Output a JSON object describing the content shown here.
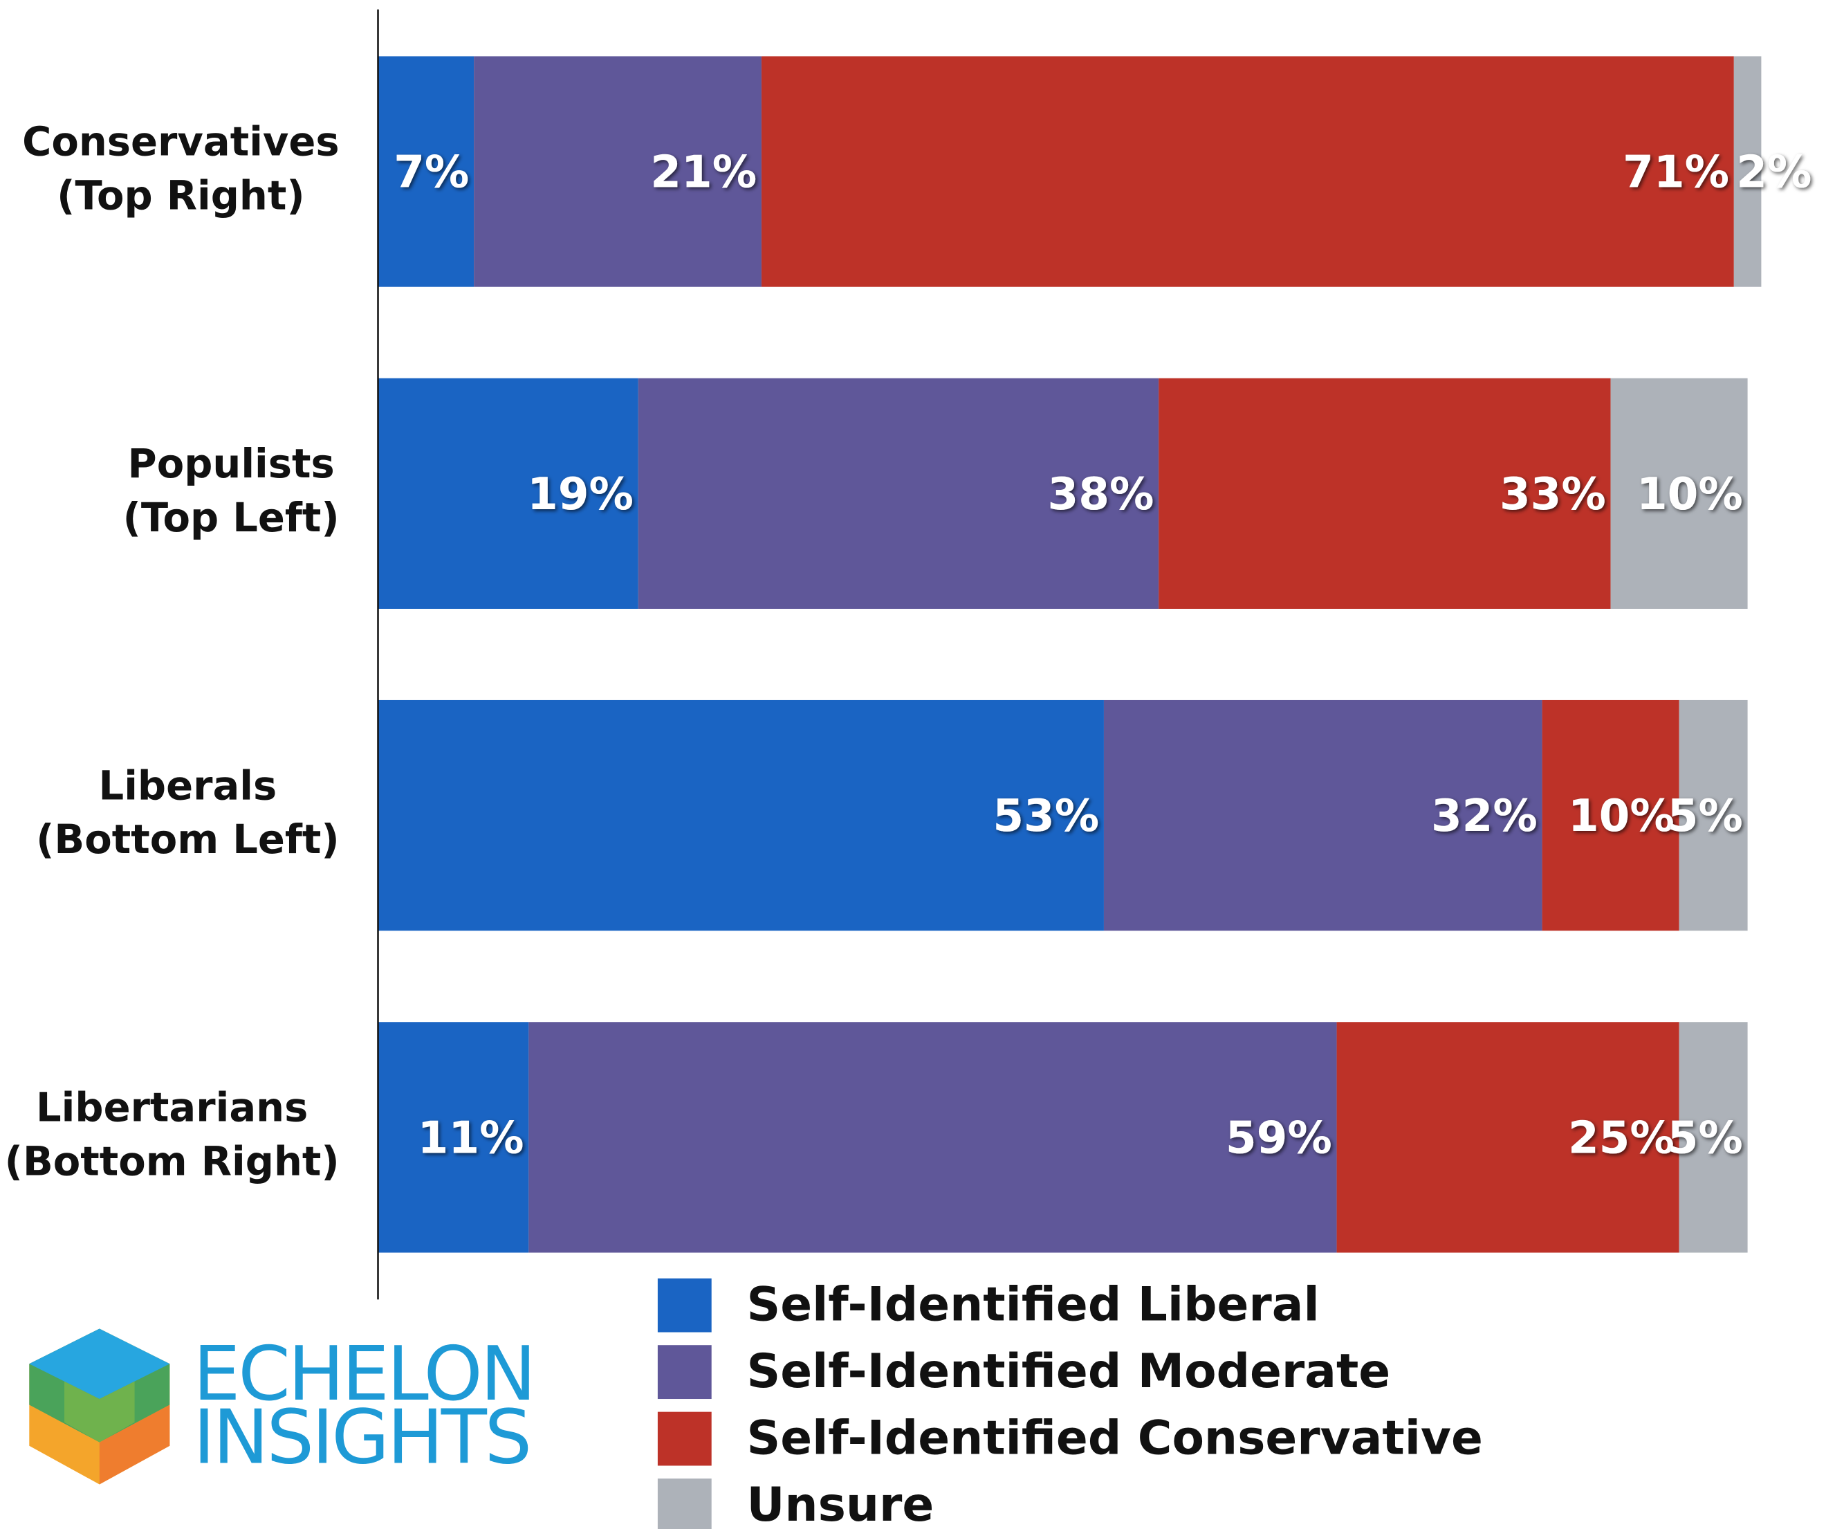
{
  "chart_data": {
    "type": "stacked-bar-horizontal",
    "categories": [
      [
        "Conservatives",
        "(Top Right)"
      ],
      [
        "Populists",
        "(Top Left)"
      ],
      [
        "Liberals",
        "(Bottom Left)"
      ],
      [
        "Libertarians",
        "(Bottom Right)"
      ]
    ],
    "series": [
      {
        "name": "Self-Identified Liberal",
        "color": "#1a64c3",
        "values": [
          7,
          19,
          53,
          11
        ],
        "value_labels": [
          "7%",
          "19%",
          "53%",
          "11%"
        ]
      },
      {
        "name": "Self-Identified Moderate",
        "color": "#5f5799",
        "values": [
          21,
          38,
          32,
          59
        ],
        "value_labels": [
          "21%",
          "38%",
          "32%",
          "59%"
        ]
      },
      {
        "name": "Self-Identified Conservative",
        "color": "#bd3228",
        "values": [
          71,
          33,
          10,
          25
        ],
        "value_labels": [
          "71%",
          "33%",
          "10%",
          "25%"
        ]
      },
      {
        "name": "Unsure",
        "color": "#adb2b9",
        "values": [
          2,
          10,
          5,
          5
        ],
        "value_labels": [
          "2%",
          "10%",
          "5%",
          "5%"
        ]
      }
    ],
    "xlim": [
      0,
      101
    ],
    "legend": "bottom"
  },
  "logo": [
    "ECHELON",
    "INSIGHTS"
  ]
}
